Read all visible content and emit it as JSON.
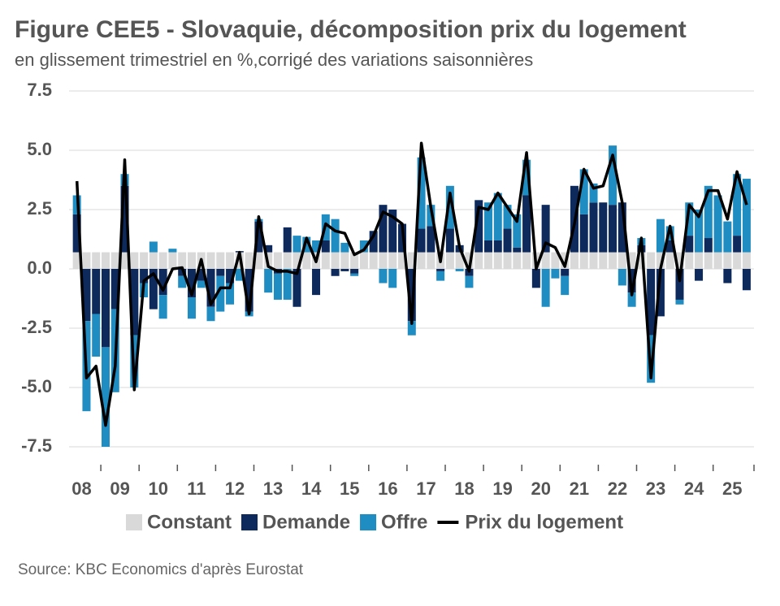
{
  "chart_data": {
    "type": "bar",
    "title": "Figure CEE5 - Slovaquie, décomposition prix du logement",
    "subtitle": "en glissement trimestriel en %,corrigé des variations saisonnières",
    "source": "Source: KBC Economics d'après Eurostat",
    "categories": [
      "08",
      "09",
      "10",
      "11",
      "12",
      "13",
      "14",
      "15",
      "16",
      "17",
      "18",
      "19",
      "20",
      "21",
      "22",
      "23",
      "24",
      "25"
    ],
    "ylim": [
      -7.5,
      7.5
    ],
    "yticks": [
      {
        "value": 7.5,
        "label": "7.5"
      },
      {
        "value": 5,
        "label": "5.0"
      },
      {
        "value": 2.5,
        "label": "2.5"
      },
      {
        "value": 0,
        "label": "0.0"
      },
      {
        "value": -2.5,
        "label": "-2.5"
      },
      {
        "value": -5,
        "label": "-5.0"
      },
      {
        "value": -7.5,
        "label": "-7.5"
      }
    ],
    "grid": true,
    "series": [
      {
        "name": "Constant",
        "type": "bar",
        "color": "#d9d9d9",
        "values": [
          [
            null,
            0.7,
            0.7,
            0.7
          ],
          [
            0.7,
            0.7,
            0.7,
            0.7
          ],
          [
            0.7,
            0.7,
            0.7,
            0.7
          ],
          [
            0.7,
            0.7,
            0.7,
            0.7
          ],
          [
            0.7,
            0.7,
            0.7,
            0.7
          ],
          [
            0.7,
            0.7,
            0.7,
            0.7
          ],
          [
            0.7,
            0.7,
            0.7,
            0.7
          ],
          [
            0.7,
            0.7,
            0.7,
            0.7
          ],
          [
            0.7,
            0.7,
            0.7,
            0.7
          ],
          [
            0.7,
            0.7,
            0.7,
            0.7
          ],
          [
            0.7,
            0.7,
            0.7,
            0.7
          ],
          [
            0.7,
            0.7,
            0.7,
            0.7
          ],
          [
            0.7,
            0.7,
            0.7,
            0.7
          ],
          [
            0.7,
            0.7,
            0.7,
            0.7
          ],
          [
            0.7,
            0.7,
            0.7,
            0.7
          ],
          [
            0.7,
            0.7,
            0.7,
            0.7
          ],
          [
            0.7,
            0.7,
            0.7,
            0.7
          ],
          [
            0.7,
            0.7,
            0.7,
            0.7
          ]
        ]
      },
      {
        "name": "Demande",
        "type": "bar",
        "color": "#0e2a5c",
        "values": [
          [
            null,
            1.6,
            -2.2,
            -1.9
          ],
          [
            -3.3,
            -1.7,
            2.8,
            -2.8
          ],
          [
            -0.6,
            -1.7,
            -1.1,
            0.0
          ],
          [
            -0.3,
            -1.2,
            -0.5,
            -1.6
          ],
          [
            -0.3,
            -0.6,
            0.05,
            -1.8
          ],
          [
            1.3,
            0.3,
            -0.2,
            1.05
          ],
          [
            -1.6,
            0.0,
            -1.1,
            0.5
          ],
          [
            -0.3,
            -0.1,
            -0.2,
            0.0
          ],
          [
            0.9,
            2.0,
            1.8,
            1.2
          ],
          [
            -2.2,
            1.0,
            1.1,
            -0.1
          ],
          [
            1.0,
            0.3,
            -0.3,
            2.2
          ],
          [
            0.5,
            0.5,
            1.0,
            0.2
          ],
          [
            2.4,
            -0.8,
            2.0,
            0.0
          ],
          [
            -0.3,
            2.8,
            1.6,
            2.1
          ],
          [
            2.1,
            2.0,
            2.1,
            -1.0
          ],
          [
            0.3,
            -2.8,
            -2.0,
            0.5
          ],
          [
            -1.3,
            0.7,
            -0.5,
            0.6
          ],
          [
            0.0,
            -0.6,
            0.7,
            -0.9
          ]
        ]
      },
      {
        "name": "Offre",
        "type": "bar",
        "color": "#1f8cc2",
        "values": [
          [
            null,
            0.8,
            -3.8,
            -1.8
          ],
          [
            -4.2,
            -3.5,
            0.5,
            -2.2
          ],
          [
            -0.6,
            0.45,
            -1.0,
            0.15
          ],
          [
            -0.5,
            -0.9,
            -0.3,
            -0.6
          ],
          [
            -1.5,
            -0.9,
            -0.5,
            -0.2
          ],
          [
            0.1,
            -1.0,
            -1.1,
            -1.3
          ],
          [
            0.7,
            0.65,
            0.5,
            1.1
          ],
          [
            1.4,
            0.4,
            -0.1,
            0.5
          ],
          [
            0.0,
            -0.6,
            -0.8,
            0.0
          ],
          [
            -0.6,
            3.0,
            0.9,
            -0.4
          ],
          [
            1.8,
            -0.1,
            -0.5,
            0.0
          ],
          [
            1.6,
            2.0,
            1.0,
            1.4
          ],
          [
            1.5,
            0.0,
            -1.6,
            -0.4
          ],
          [
            -0.8,
            0.0,
            1.9,
            0.8
          ],
          [
            0.0,
            2.5,
            -0.7,
            -0.6
          ],
          [
            0.3,
            -2.0,
            1.4,
            0.6
          ],
          [
            -0.2,
            1.4,
            1.8,
            2.2
          ],
          [
            2.4,
            1.3,
            2.6,
            3.1
          ]
        ]
      },
      {
        "name": "Prix du logement",
        "type": "line",
        "color": "#000000",
        "values": [
          [
            null,
            3.7,
            -4.6,
            -4.1
          ],
          [
            -6.6,
            -4.1,
            4.6,
            -5.1
          ],
          [
            -0.5,
            -0.2,
            -0.9,
            0.0
          ],
          [
            0.05,
            -1.1,
            0.4,
            -1.5
          ],
          [
            -0.8,
            -0.8,
            0.7,
            -1.9
          ],
          [
            2.2,
            0.1,
            -0.1,
            -0.1
          ],
          [
            -0.2,
            1.3,
            0.3,
            1.9
          ],
          [
            1.6,
            1.5,
            0.6,
            0.8
          ],
          [
            1.4,
            2.4,
            2.2,
            1.9
          ],
          [
            -2.3,
            5.3,
            2.6,
            0.3
          ],
          [
            3.2,
            0.9,
            -0.1,
            2.6
          ],
          [
            2.5,
            3.2,
            2.6,
            2.0
          ],
          [
            4.9,
            0.0,
            1.1,
            0.9
          ],
          [
            0.1,
            1.9,
            4.2,
            3.4
          ],
          [
            3.5,
            4.8,
            2.8,
            -1.1
          ],
          [
            1.3,
            -4.6,
            0.0,
            1.8
          ],
          [
            -0.5,
            2.7,
            2.2,
            3.3
          ],
          [
            3.3,
            2.1,
            4.1,
            2.7
          ]
        ]
      }
    ]
  }
}
